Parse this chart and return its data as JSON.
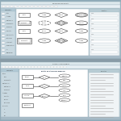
{
  "bg_outer": "#8faab8",
  "bg_app": "#b8ccd4",
  "sidebar_bg": "#c8d8e0",
  "canvas_bg": "#f5f5f5",
  "white": "#ffffff",
  "title_bar": "#5a7080",
  "menu_bar": "#dce8ec",
  "toolbar_bg": "#e8f0f4",
  "right_panel_bg": "#f0f4f6",
  "panel_border": "#9ab0bc",
  "shape_edge": "#606060",
  "text_color": "#444444",
  "line_color": "#aaaaaa",
  "separator": "#8899a4",
  "bottom_bar": "#a8bcc8"
}
